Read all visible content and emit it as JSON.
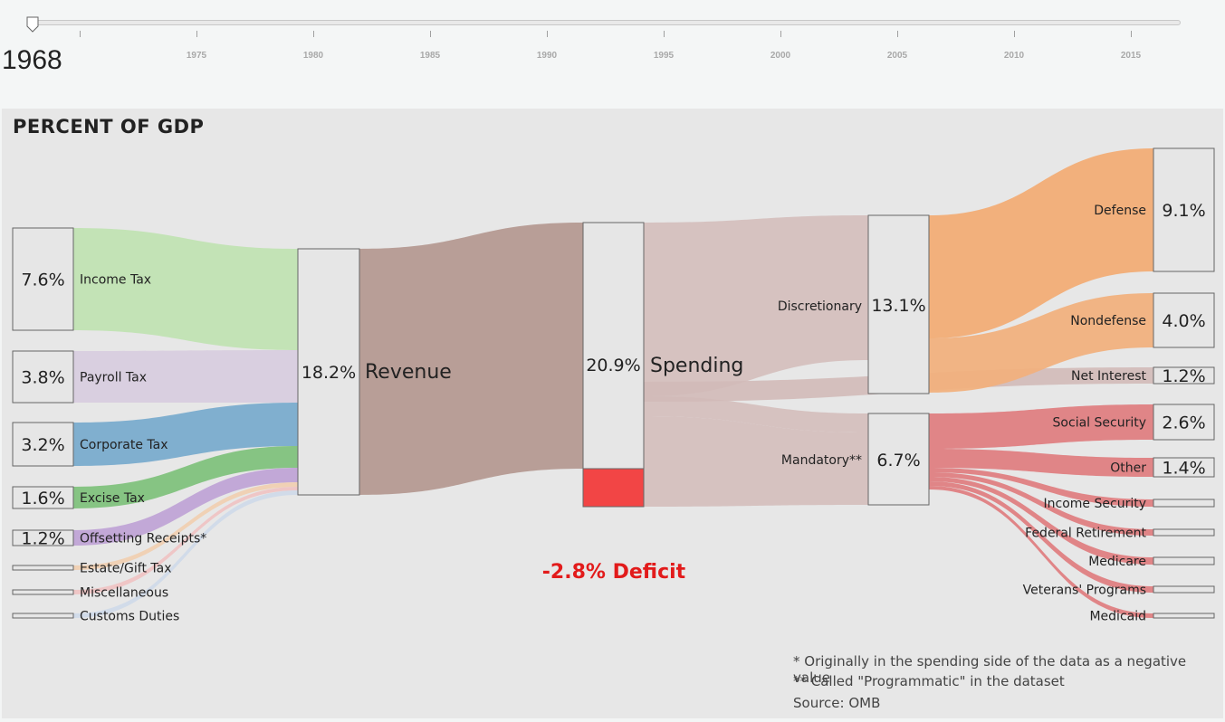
{
  "slider": {
    "year": "1968",
    "ticks": [
      "1975",
      "1980",
      "1985",
      "1990",
      "1995",
      "2000",
      "2005",
      "2010",
      "2015"
    ]
  },
  "title": "PERCENT OF GDP",
  "revenue": {
    "label": "Revenue",
    "value": "18.2%",
    "sources": [
      {
        "label": "Income Tax",
        "value": "7.6%",
        "color": "#c3e3b6"
      },
      {
        "label": "Payroll Tax",
        "value": "3.8%",
        "color": "#d9cfe0"
      },
      {
        "label": "Corporate Tax",
        "value": "3.2%",
        "color": "#80afcf"
      },
      {
        "label": "Excise Tax",
        "value": "1.6%",
        "color": "#86c483"
      },
      {
        "label": "Offsetting Receipts*",
        "value": "1.2%",
        "color": "#c2a8d7"
      },
      {
        "label": "Estate/Gift Tax",
        "value": "",
        "color": "#f4c8a0"
      },
      {
        "label": "Miscellaneous",
        "value": "",
        "color": "#f2b8b8"
      },
      {
        "label": "Customs Duties",
        "value": "",
        "color": "#c8d5ea"
      }
    ]
  },
  "spending": {
    "label": "Spending",
    "value": "20.9%"
  },
  "deficit": {
    "label": "-2.8% Deficit"
  },
  "discretionary": {
    "label": "Discretionary",
    "value": "13.1%"
  },
  "mandatory": {
    "label": "Mandatory**",
    "value": "6.7%"
  },
  "outlays": [
    {
      "label": "Defense",
      "value": "9.1%"
    },
    {
      "label": "Nondefense",
      "value": "4.0%"
    },
    {
      "label": "Net Interest",
      "value": "1.2%"
    },
    {
      "label": "Social Security",
      "value": "2.6%"
    },
    {
      "label": "Other",
      "value": "1.4%"
    },
    {
      "label": "Income Security",
      "value": ""
    },
    {
      "label": "Federal Retirement",
      "value": ""
    },
    {
      "label": "Medicare",
      "value": ""
    },
    {
      "label": "Veterans' Programs",
      "value": ""
    },
    {
      "label": "Medicaid",
      "value": ""
    }
  ],
  "colors": {
    "revenue_flow": "#b89e97",
    "spending_flow": "#d6c2c0",
    "discretionary_flow": "#f2b07c",
    "mandatory_flow": "#e08587",
    "deficit": "#f24545"
  },
  "notes": [
    "* Originally in the spending side of the data as a negative value",
    "** Called \"Programmatic\" in the dataset",
    "Source: OMB"
  ]
}
